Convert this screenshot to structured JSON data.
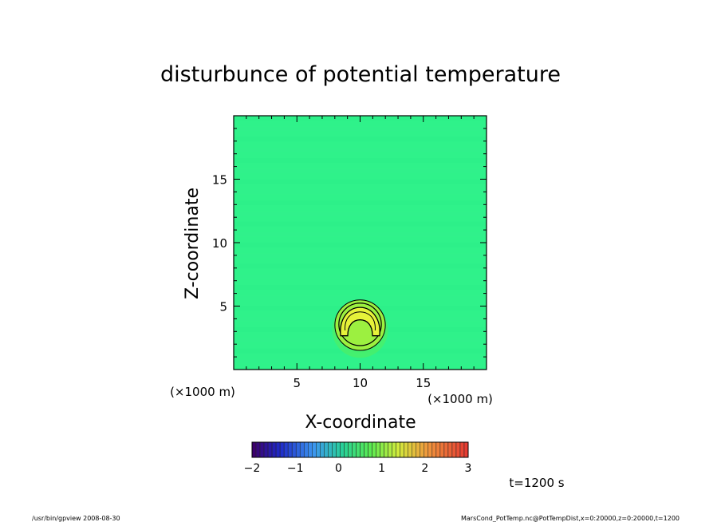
{
  "chart_data": {
    "type": "heatmap",
    "title": "disturbunce of potential temperature",
    "xlabel": "X-coordinate",
    "ylabel": "Z-coordinate",
    "x_unit": "(×1000 m)",
    "y_unit": "(×1000 m)",
    "xlim": [
      0,
      20
    ],
    "ylim": [
      0,
      20
    ],
    "x_ticks": [
      5,
      10,
      15
    ],
    "y_ticks": [
      5,
      10,
      15
    ],
    "background_color": "#2ff28a",
    "anomaly": {
      "center_x": 10,
      "center_z": 3.5,
      "radius": 2.1,
      "max_value": 1.8,
      "inner_color": "#e6f23a",
      "mid_color": "#9cf040"
    },
    "colorbar": {
      "ticks": [
        "−2",
        "−1",
        "0",
        "1",
        "2",
        "3"
      ],
      "range": [
        -2,
        3
      ]
    },
    "time_label": "t=1200 s"
  },
  "footer": {
    "left": "/usr/bin/gpview   2008-08-30",
    "right": "MarsCond_PotTemp.nc@PotTempDist,x=0:20000,z=0:20000,t=1200"
  }
}
